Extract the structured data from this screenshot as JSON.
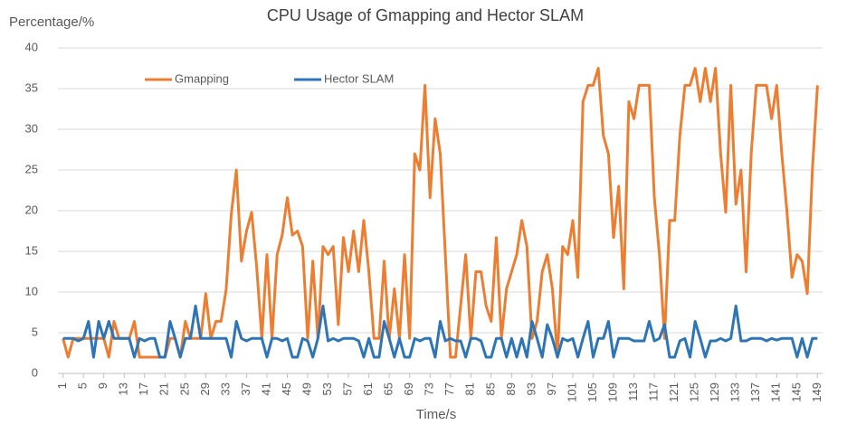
{
  "chart_data": {
    "type": "line",
    "title": "CPU Usage of Gmapping and Hector SLAM",
    "y_label": "Percentage/%",
    "x_label": "Time/s",
    "x": [
      1,
      2,
      3,
      4,
      5,
      6,
      7,
      8,
      9,
      10,
      11,
      12,
      13,
      14,
      15,
      16,
      17,
      18,
      19,
      20,
      21,
      22,
      23,
      24,
      25,
      26,
      27,
      28,
      29,
      30,
      31,
      32,
      33,
      34,
      35,
      36,
      37,
      38,
      39,
      40,
      41,
      42,
      43,
      44,
      45,
      46,
      47,
      48,
      49,
      50,
      51,
      52,
      53,
      54,
      55,
      56,
      57,
      58,
      59,
      60,
      61,
      62,
      63,
      64,
      65,
      66,
      67,
      68,
      69,
      70,
      71,
      72,
      73,
      74,
      75,
      76,
      77,
      78,
      79,
      80,
      81,
      82,
      83,
      84,
      85,
      86,
      87,
      88,
      89,
      90,
      91,
      92,
      93,
      94,
      95,
      96,
      97,
      98,
      99,
      100,
      101,
      102,
      103,
      104,
      105,
      106,
      107,
      108,
      109,
      110,
      111,
      112,
      113,
      114,
      115,
      116,
      117,
      118,
      119,
      120,
      121,
      122,
      123,
      124,
      125,
      126,
      127,
      128,
      129,
      130,
      131,
      132,
      133,
      134,
      135,
      136,
      137,
      138,
      139,
      140,
      141,
      142,
      143,
      144,
      145,
      146,
      147,
      148,
      149
    ],
    "series": [
      {
        "name": "Gmapping",
        "color": "#ed7d31",
        "values": [
          4.3,
          2,
          4.3,
          4.3,
          4.3,
          4.3,
          4.3,
          4.3,
          4.3,
          2,
          6.4,
          4.3,
          4.3,
          4.3,
          6.4,
          2,
          2,
          2,
          2,
          2,
          2,
          4.3,
          4.3,
          2,
          6.4,
          4.3,
          4.3,
          4.3,
          9.8,
          4.3,
          6.4,
          6.4,
          10.3,
          19.5,
          25,
          13.8,
          17.5,
          19.8,
          13,
          4.3,
          14.6,
          4.3,
          14.6,
          17,
          21.6,
          17,
          17.5,
          15.6,
          4.3,
          13.8,
          4.3,
          15.6,
          14.6,
          15.6,
          6,
          16.7,
          12.5,
          17.5,
          12.5,
          18.8,
          12.5,
          4.3,
          4.3,
          13.8,
          4.3,
          10.4,
          4.3,
          14.6,
          4.3,
          27,
          25,
          35.4,
          21.6,
          31.3,
          27,
          14.6,
          2,
          2,
          8.3,
          14.6,
          4.3,
          12.5,
          12.5,
          8.3,
          6.4,
          16.7,
          4.3,
          10.4,
          12.5,
          14.6,
          18.8,
          15.6,
          4.3,
          6.4,
          12.5,
          14.6,
          10.4,
          2,
          15.6,
          14.6,
          18.8,
          11.8,
          33.4,
          35.4,
          35.4,
          37.5,
          29.2,
          27,
          16.7,
          23,
          10.4,
          33.4,
          31.3,
          35.4,
          35.4,
          35.4,
          21.6,
          14.6,
          4.3,
          18.8,
          18.8,
          29.2,
          35.4,
          35.4,
          37.5,
          33.4,
          37.5,
          33.4,
          37.5,
          27,
          19.8,
          35.4,
          20.8,
          25,
          12.5,
          27,
          35.4,
          35.4,
          35.4,
          31.3,
          35.4,
          27,
          20,
          11.8,
          14.6,
          13.8,
          9.8,
          25,
          35.4
        ]
      },
      {
        "name": "Hector SLAM",
        "color": "#2e75b6",
        "values": [
          4.3,
          4.3,
          4.3,
          4,
          4.3,
          6.4,
          2,
          6.4,
          4.3,
          6.4,
          4.3,
          4.3,
          4.3,
          4.3,
          2,
          4.3,
          4,
          4.3,
          4.3,
          2,
          2,
          6.4,
          4.3,
          2,
          4.3,
          4.3,
          8.3,
          4.3,
          4.3,
          4.3,
          4.3,
          4.3,
          4.3,
          2,
          6.4,
          4.3,
          4,
          4.3,
          4.3,
          4.3,
          2,
          4.3,
          4.3,
          4,
          4.3,
          2,
          2,
          4.3,
          4,
          2,
          4.3,
          8.3,
          4,
          4.3,
          4,
          4.3,
          4.3,
          4.3,
          4,
          2,
          4.3,
          2,
          2,
          6.4,
          4.3,
          2,
          4.3,
          2,
          2,
          4.3,
          4,
          4.3,
          4.3,
          2,
          6.4,
          4,
          4.3,
          4,
          4,
          2,
          4.3,
          4.3,
          4,
          2,
          2,
          4.3,
          4.3,
          2,
          4.3,
          2,
          4.3,
          2,
          6.4,
          4.3,
          2,
          6,
          4.3,
          2,
          4.3,
          4,
          4.3,
          2,
          4.3,
          6.4,
          2,
          4.3,
          4.3,
          6.4,
          2,
          4.3,
          4.3,
          4.3,
          4,
          4,
          4,
          6.4,
          4,
          4.3,
          6,
          2,
          2,
          4,
          4.3,
          2,
          6.4,
          4.3,
          2,
          4,
          4,
          4.3,
          4,
          4.3,
          8.3,
          4,
          4,
          4.3,
          4.3,
          4.3,
          4,
          4.3,
          4.1,
          4.3,
          4.3,
          4.3,
          2,
          4.3,
          2,
          4.3,
          4.3
        ]
      }
    ],
    "xlim": [
      0,
      150
    ],
    "xticks": [
      1,
      5,
      9,
      13,
      17,
      21,
      25,
      29,
      33,
      37,
      41,
      45,
      49,
      53,
      57,
      61,
      65,
      69,
      73,
      77,
      81,
      85,
      89,
      93,
      97,
      101,
      105,
      109,
      113,
      117,
      121,
      125,
      129,
      133,
      137,
      141,
      145,
      149
    ],
    "ylim": [
      0,
      40
    ],
    "yticks": [
      0,
      5,
      10,
      15,
      20,
      25,
      30,
      35,
      40
    ],
    "grid": true,
    "legend": "top"
  }
}
